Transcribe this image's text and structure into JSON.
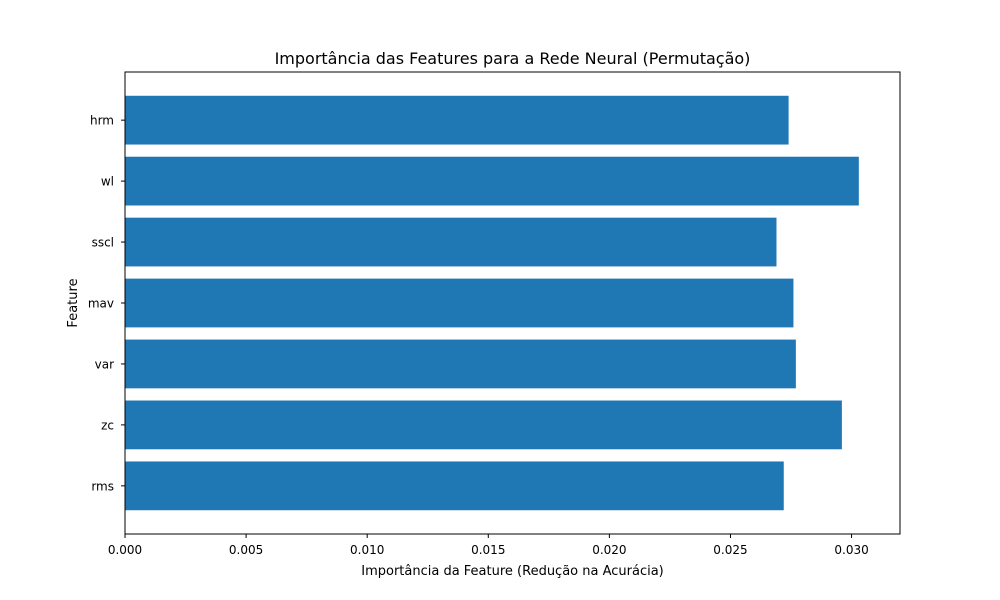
{
  "chart_data": {
    "type": "bar",
    "orientation": "horizontal",
    "title": "Importância das Features para a Rede Neural (Permutação)",
    "xlabel": "Importância da Feature (Redução na Acurácia)",
    "ylabel": "Feature",
    "categories": [
      "rms",
      "zc",
      "var",
      "mav",
      "sscl",
      "wl",
      "hrm"
    ],
    "values": [
      0.0272,
      0.0296,
      0.0277,
      0.0276,
      0.0269,
      0.0303,
      0.0274
    ],
    "xlim": [
      0.0,
      0.032
    ],
    "xticks": [
      "0.000",
      "0.005",
      "0.010",
      "0.015",
      "0.020",
      "0.025",
      "0.030"
    ],
    "grid": false,
    "bar_color": "#1f77b4"
  }
}
